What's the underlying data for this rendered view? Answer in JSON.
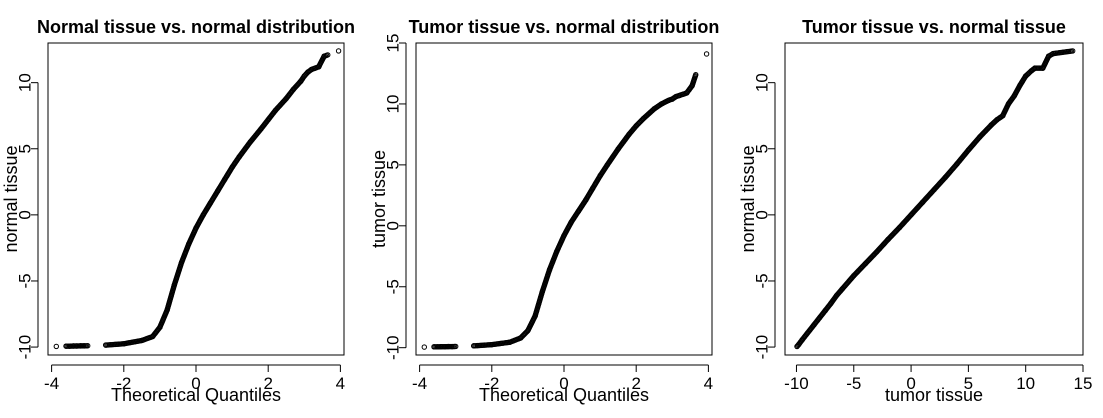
{
  "chart_data": [
    {
      "type": "scatter",
      "title": "Normal tissue vs. normal distribution",
      "xlabel": "Theoretical Quantiles",
      "ylabel": "normal tissue",
      "xlim": [
        -4.1,
        4.1
      ],
      "ylim": [
        -10.6,
        13.0
      ],
      "xticks": [
        -4,
        -2,
        0,
        2,
        4
      ],
      "yticks": [
        -10,
        -5,
        0,
        5,
        10
      ],
      "grid": false,
      "marker": "open-circle",
      "x": [
        -3.87,
        -3.6,
        -3.5,
        -3.4,
        -3.3,
        -3.2,
        -3.1,
        -3.0,
        -2.5,
        -2.0,
        -1.5,
        -1.2,
        -1.0,
        -0.8,
        -0.6,
        -0.4,
        -0.2,
        0.0,
        0.2,
        0.4,
        0.6,
        0.8,
        1.0,
        1.2,
        1.5,
        1.8,
        2.0,
        2.2,
        2.5,
        2.7,
        2.9,
        3.0,
        3.1,
        3.2,
        3.3,
        3.4,
        3.55,
        3.65,
        3.95
      ],
      "y": [
        -9.95,
        -9.93,
        -9.93,
        -9.92,
        -9.92,
        -9.91,
        -9.91,
        -9.9,
        -9.85,
        -9.75,
        -9.5,
        -9.2,
        -8.5,
        -7.2,
        -5.3,
        -3.6,
        -2.2,
        -1.0,
        0.0,
        0.9,
        1.8,
        2.7,
        3.6,
        4.4,
        5.5,
        6.5,
        7.2,
        7.9,
        8.8,
        9.5,
        10.1,
        10.5,
        10.8,
        11.0,
        11.1,
        11.2,
        12.0,
        12.1,
        12.4
      ]
    },
    {
      "type": "scatter",
      "title": "Tumor tissue vs. normal distribution",
      "xlabel": "Theoretical Quantiles",
      "ylabel": "tumor tissue",
      "xlim": [
        -4.1,
        4.1
      ],
      "ylim": [
        -10.6,
        15.0
      ],
      "xticks": [
        -4,
        -2,
        0,
        2,
        4
      ],
      "yticks": [
        -10,
        -5,
        0,
        5,
        10,
        15
      ],
      "grid": false,
      "marker": "open-circle",
      "x": [
        -3.87,
        -3.6,
        -3.5,
        -3.4,
        -3.3,
        -3.2,
        -3.1,
        -3.0,
        -2.5,
        -2.0,
        -1.5,
        -1.2,
        -1.0,
        -0.8,
        -0.6,
        -0.4,
        -0.2,
        0.0,
        0.2,
        0.4,
        0.6,
        0.8,
        1.0,
        1.2,
        1.5,
        1.8,
        2.0,
        2.2,
        2.5,
        2.7,
        2.9,
        3.0,
        3.1,
        3.2,
        3.3,
        3.4,
        3.55,
        3.65,
        3.95
      ],
      "y": [
        -9.95,
        -9.93,
        -9.93,
        -9.92,
        -9.92,
        -9.91,
        -9.91,
        -9.9,
        -9.85,
        -9.75,
        -9.55,
        -9.2,
        -8.6,
        -7.4,
        -5.4,
        -3.6,
        -2.1,
        -0.8,
        0.3,
        1.2,
        2.1,
        3.1,
        4.1,
        5.0,
        6.3,
        7.5,
        8.2,
        8.8,
        9.6,
        10.0,
        10.3,
        10.4,
        10.6,
        10.7,
        10.8,
        10.9,
        11.5,
        12.4,
        14.1
      ]
    },
    {
      "type": "scatter",
      "title": "Tumor tissue vs. normal tissue",
      "xlabel": "tumor tissue",
      "ylabel": "normal tissue",
      "xlim": [
        -11.0,
        15.0
      ],
      "ylim": [
        -10.6,
        13.0
      ],
      "xticks": [
        -10,
        -5,
        0,
        5,
        10,
        15
      ],
      "yticks": [
        -10,
        -5,
        0,
        5,
        10
      ],
      "grid": false,
      "marker": "open-circle",
      "x": [
        -9.95,
        -9.8,
        -9.5,
        -9.0,
        -8.5,
        -8.0,
        -7.5,
        -7.0,
        -6.5,
        -6.0,
        -5.0,
        -4.0,
        -3.0,
        -2.0,
        -1.0,
        0.0,
        1.0,
        2.0,
        3.0,
        4.0,
        5.0,
        6.0,
        7.0,
        7.5,
        8.0,
        8.5,
        9.0,
        9.5,
        10.0,
        10.5,
        10.8,
        11.5,
        12.0,
        12.4,
        14.1
      ],
      "y": [
        -9.95,
        -9.8,
        -9.45,
        -8.9,
        -8.35,
        -7.8,
        -7.25,
        -6.7,
        -6.1,
        -5.6,
        -4.6,
        -3.7,
        -2.8,
        -1.85,
        -0.95,
        0.0,
        0.95,
        1.9,
        2.85,
        3.85,
        4.9,
        5.9,
        6.8,
        7.2,
        7.5,
        8.4,
        9.0,
        9.8,
        10.5,
        10.9,
        11.1,
        11.1,
        12.0,
        12.2,
        12.4
      ]
    }
  ]
}
